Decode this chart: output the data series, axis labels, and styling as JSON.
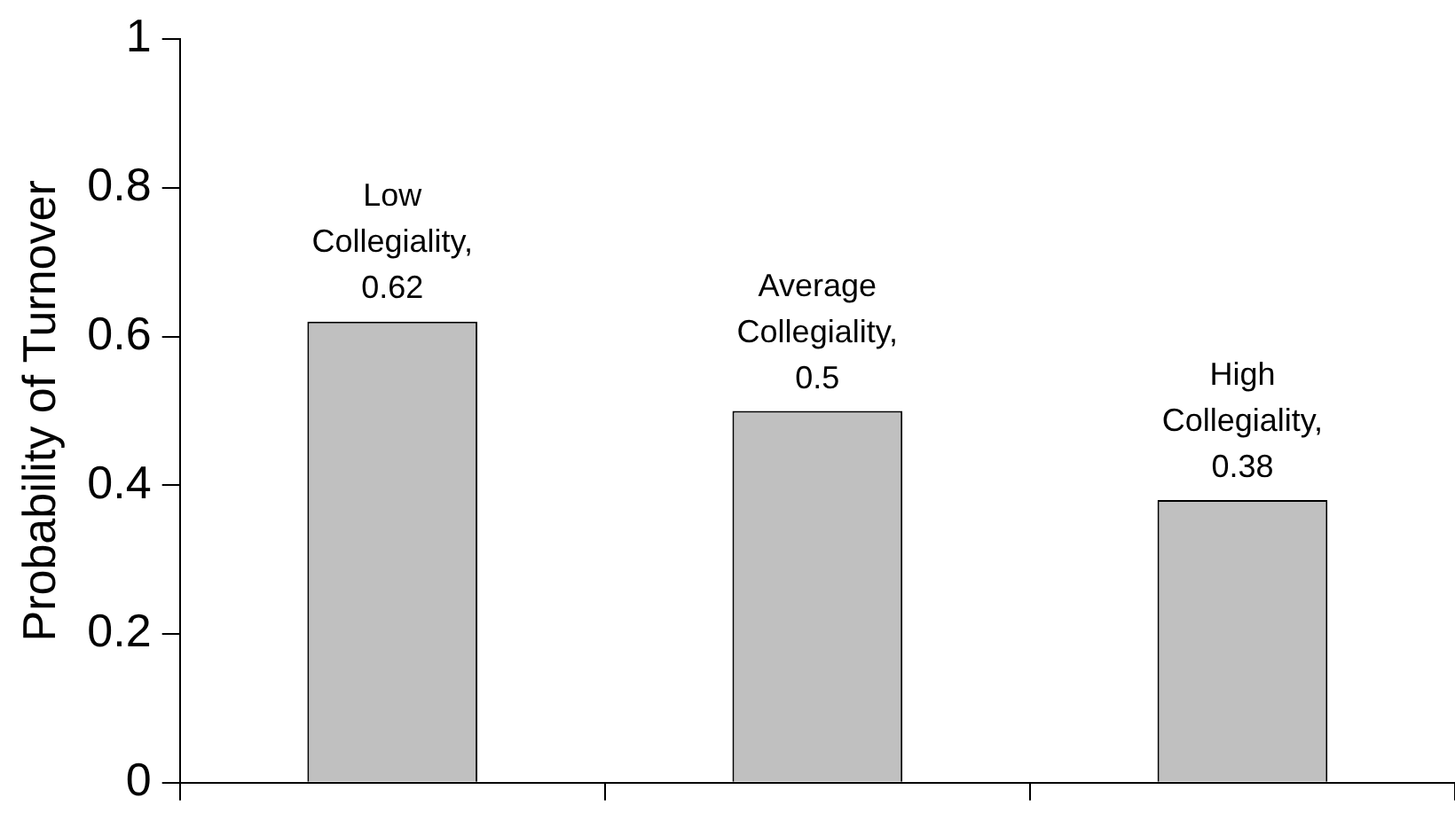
{
  "chart_data": {
    "type": "bar",
    "ylabel": "Probability of Turnover",
    "categories": [
      null,
      null,
      null
    ],
    "values": [
      0.62,
      0.5,
      0.38
    ],
    "color": "#c0c0c0",
    "value_labels": [
      "Low Collegiality, 0.62",
      "Average Collegiality, 0.5",
      "High Collegiality, 0.38"
    ],
    "ylim": [
      0,
      1
    ],
    "yticks": [
      0,
      0.2,
      0.4,
      0.6,
      0.8,
      1
    ],
    "grid": false,
    "legend": false,
    "tick_labels": "y"
  }
}
